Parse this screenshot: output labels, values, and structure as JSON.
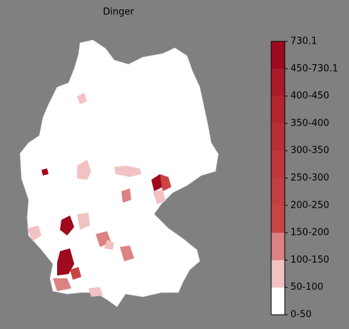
{
  "map": {
    "title": "Dinger",
    "legend": {
      "labels": [
        "0-50",
        "50-100",
        "100-150",
        "150-200",
        "200-250",
        "250-300",
        "300-350",
        "350-400",
        "400-450",
        "450-730.1",
        "730.1"
      ],
      "colors": [
        "#ffffff",
        "#f2c2c2",
        "#dc8282",
        "#ca4444",
        "#c53d40",
        "#c0363b",
        "#ba2e36",
        "#b42530",
        "#aa1a28",
        "#9f0a1e"
      ]
    }
  }
}
